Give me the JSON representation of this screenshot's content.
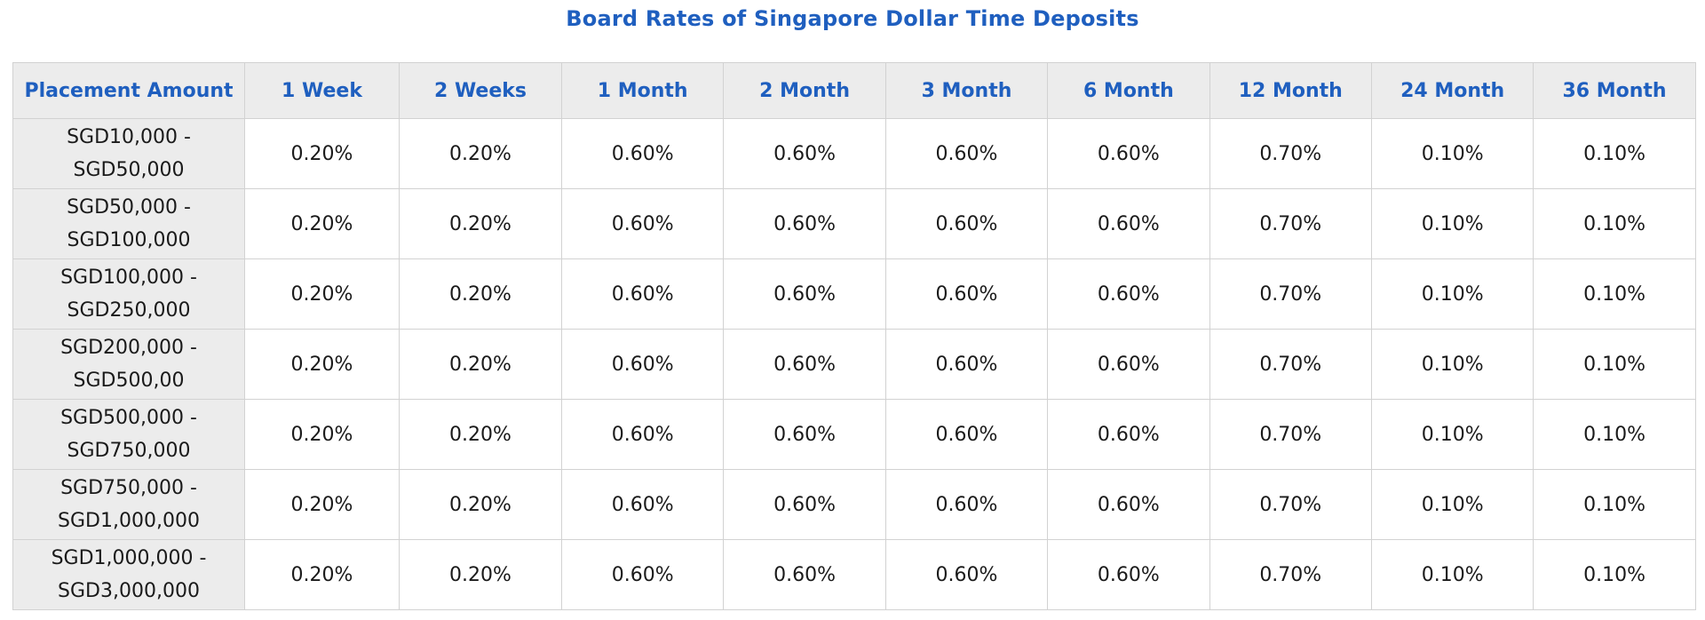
{
  "title": "Board Rates of Singapore Dollar Time Deposits",
  "table": {
    "headers": [
      "Placement Amount",
      "1 Week",
      "2 Weeks",
      "1 Month",
      "2 Month",
      "3 Month",
      "6 Month",
      "12 Month",
      "24 Month",
      "36 Month"
    ],
    "rows": [
      {
        "amount_line1": "SGD10,000 -",
        "amount_line2": "SGD50,000",
        "rates": [
          "0.20%",
          "0.20%",
          "0.60%",
          "0.60%",
          "0.60%",
          "0.60%",
          "0.70%",
          "0.10%",
          "0.10%"
        ]
      },
      {
        "amount_line1": "SGD50,000 -",
        "amount_line2": "SGD100,000",
        "rates": [
          "0.20%",
          "0.20%",
          "0.60%",
          "0.60%",
          "0.60%",
          "0.60%",
          "0.70%",
          "0.10%",
          "0.10%"
        ]
      },
      {
        "amount_line1": "SGD100,000 -",
        "amount_line2": "SGD250,000",
        "rates": [
          "0.20%",
          "0.20%",
          "0.60%",
          "0.60%",
          "0.60%",
          "0.60%",
          "0.70%",
          "0.10%",
          "0.10%"
        ]
      },
      {
        "amount_line1": "SGD200,000 -",
        "amount_line2": "SGD500,00",
        "rates": [
          "0.20%",
          "0.20%",
          "0.60%",
          "0.60%",
          "0.60%",
          "0.60%",
          "0.70%",
          "0.10%",
          "0.10%"
        ]
      },
      {
        "amount_line1": "SGD500,000 -",
        "amount_line2": "SGD750,000",
        "rates": [
          "0.20%",
          "0.20%",
          "0.60%",
          "0.60%",
          "0.60%",
          "0.60%",
          "0.70%",
          "0.10%",
          "0.10%"
        ]
      },
      {
        "amount_line1": "SGD750,000 -",
        "amount_line2": "SGD1,000,000",
        "rates": [
          "0.20%",
          "0.20%",
          "0.60%",
          "0.60%",
          "0.60%",
          "0.60%",
          "0.70%",
          "0.10%",
          "0.10%"
        ]
      },
      {
        "amount_line1": "SGD1,000,000 -",
        "amount_line2": "SGD3,000,000",
        "rates": [
          "0.20%",
          "0.20%",
          "0.60%",
          "0.60%",
          "0.60%",
          "0.60%",
          "0.70%",
          "0.10%",
          "0.10%"
        ]
      }
    ]
  },
  "colors": {
    "title_blue": "#1f5fbf",
    "header_bg": "#ececec",
    "border": "#d2d2d2"
  }
}
